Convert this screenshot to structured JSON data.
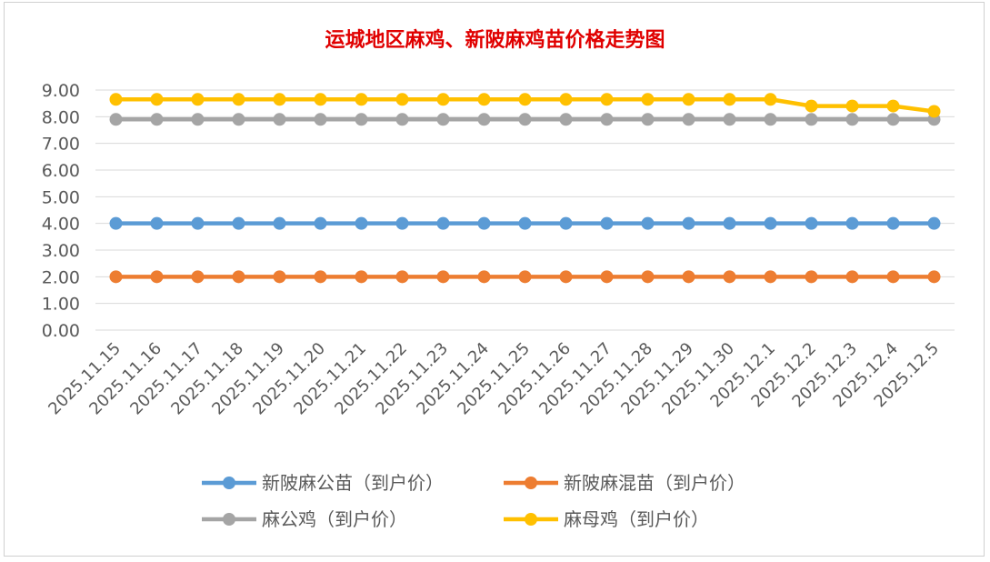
{
  "chart_data": {
    "type": "line",
    "title": "运城地区麻鸡、新陂麻鸡苗价格走势图",
    "x": [
      "2025.11.15",
      "2025.11.16",
      "2025.11.17",
      "2025.11.18",
      "2025.11.19",
      "2025.11.20",
      "2025.11.21",
      "2025.11.22",
      "2025.11.23",
      "2025.11.24",
      "2025.11.25",
      "2025.11.26",
      "2025.11.27",
      "2025.11.28",
      "2025.11.29",
      "2025.11.30",
      "2025.12.1",
      "2025.12.2",
      "2025.12.3",
      "2025.12.4",
      "2025.12.5"
    ],
    "ylim": [
      0,
      9
    ],
    "yticks": [
      "0.00",
      "1.00",
      "2.00",
      "3.00",
      "4.00",
      "5.00",
      "6.00",
      "7.00",
      "8.00",
      "9.00"
    ],
    "grid": true,
    "legend_position": "bottom",
    "series": [
      {
        "name": "新陂麻公苗（到户价）",
        "color": "#5b9bd5",
        "values": [
          4.0,
          4.0,
          4.0,
          4.0,
          4.0,
          4.0,
          4.0,
          4.0,
          4.0,
          4.0,
          4.0,
          4.0,
          4.0,
          4.0,
          4.0,
          4.0,
          4.0,
          4.0,
          4.0,
          4.0,
          4.0
        ]
      },
      {
        "name": "新陂麻混苗（到户价）",
        "color": "#ed7d31",
        "values": [
          2.0,
          2.0,
          2.0,
          2.0,
          2.0,
          2.0,
          2.0,
          2.0,
          2.0,
          2.0,
          2.0,
          2.0,
          2.0,
          2.0,
          2.0,
          2.0,
          2.0,
          2.0,
          2.0,
          2.0,
          2.0
        ]
      },
      {
        "name": "麻公鸡（到户价）",
        "color": "#a5a5a5",
        "values": [
          7.9,
          7.9,
          7.9,
          7.9,
          7.9,
          7.9,
          7.9,
          7.9,
          7.9,
          7.9,
          7.9,
          7.9,
          7.9,
          7.9,
          7.9,
          7.9,
          7.9,
          7.9,
          7.9,
          7.9,
          7.9
        ]
      },
      {
        "name": "麻母鸡（到户价）",
        "color": "#ffc000",
        "values": [
          8.65,
          8.65,
          8.65,
          8.65,
          8.65,
          8.65,
          8.65,
          8.65,
          8.65,
          8.65,
          8.65,
          8.65,
          8.65,
          8.65,
          8.65,
          8.65,
          8.65,
          8.4,
          8.4,
          8.4,
          8.2
        ]
      }
    ]
  }
}
